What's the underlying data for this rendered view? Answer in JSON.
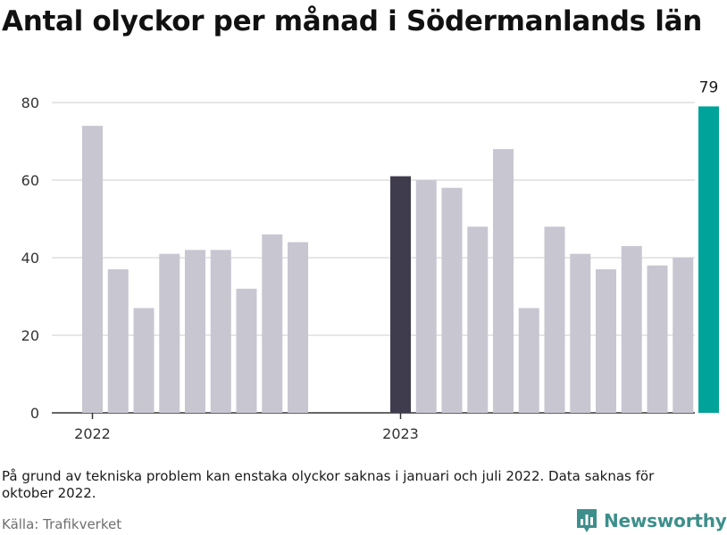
{
  "title": "Antal olyckor per månad i Södermanlands län",
  "note": "På grund av tekniska problem kan enstaka olyckor saknas i januari och juli 2022. Data saknas för oktober 2022.",
  "source": "Källa: Trafikverket",
  "brand": {
    "name": "Newsworthy",
    "color": "#3d8f8b",
    "icon": "newsworthy-bar-chart-icon"
  },
  "colors": {
    "default": "#c8c6d1",
    "highlight": "#3f3d4d",
    "latest": "#00a39a",
    "grid": "#dddddd",
    "axis": "#333333"
  },
  "chart_data": {
    "type": "bar",
    "title": "Antal olyckor per månad i Södermanlands län",
    "xlabel": "",
    "ylabel": "",
    "ylim": [
      0,
      85
    ],
    "yticks": [
      0,
      20,
      40,
      60,
      80
    ],
    "grid": true,
    "categories": [
      "2022-01",
      "2022-02",
      "2022-03",
      "2022-04",
      "2022-05",
      "2022-06",
      "2022-07",
      "2022-08",
      "2022-09",
      "2022-10",
      "2022-11",
      "2022-12",
      "2023-01",
      "2023-02",
      "2023-03",
      "2023-04",
      "2023-05",
      "2023-06",
      "2023-07",
      "2023-08",
      "2023-09",
      "2023-10",
      "2023-11",
      "2023-12",
      "2024-01"
    ],
    "values": [
      74,
      37,
      27,
      41,
      42,
      42,
      32,
      46,
      44,
      null,
      null,
      null,
      61,
      60,
      58,
      48,
      68,
      27,
      48,
      41,
      37,
      43,
      38,
      40,
      79
    ],
    "highlight_index": 12,
    "latest_index": 24,
    "latest_label": "79",
    "year_labels": [
      {
        "label": "2022",
        "index": 0
      },
      {
        "label": "2023",
        "index": 12
      }
    ]
  }
}
